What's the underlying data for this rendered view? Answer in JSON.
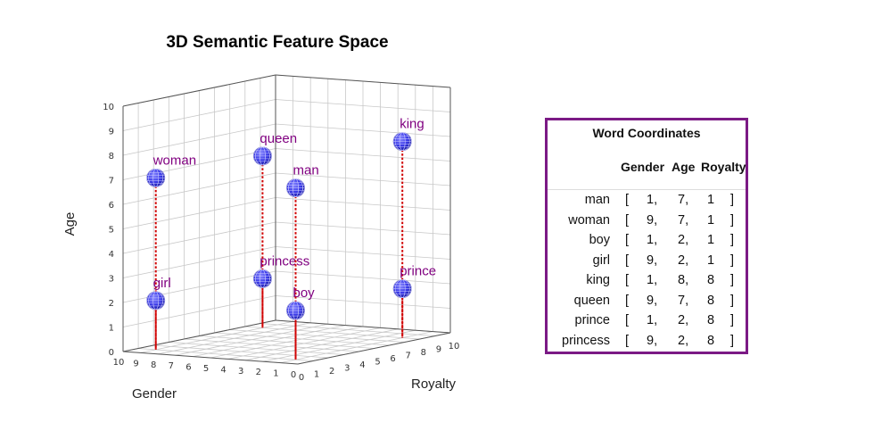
{
  "chart_data": {
    "type": "scatter3d",
    "title": "3D Semantic Feature Space",
    "xlabel": "Gender",
    "ylabel": "Royalty",
    "zlabel": "Age",
    "xlim": [
      0,
      10
    ],
    "ylim": [
      0,
      10
    ],
    "zlim": [
      0,
      10
    ],
    "ticks": [
      "0",
      "1",
      "2",
      "3",
      "4",
      "5",
      "6",
      "7",
      "8",
      "9",
      "10"
    ],
    "grid": true,
    "marker_color": "#3a3ae8",
    "label_color": "#800080",
    "stem_color": "#d00000",
    "points": [
      {
        "word": "man",
        "gender": 1,
        "age": 7,
        "royalty": 1
      },
      {
        "word": "woman",
        "gender": 9,
        "age": 7,
        "royalty": 1
      },
      {
        "word": "boy",
        "gender": 1,
        "age": 2,
        "royalty": 1
      },
      {
        "word": "girl",
        "gender": 9,
        "age": 2,
        "royalty": 1
      },
      {
        "word": "king",
        "gender": 1,
        "age": 8,
        "royalty": 8
      },
      {
        "word": "queen",
        "gender": 9,
        "age": 7,
        "royalty": 8
      },
      {
        "word": "prince",
        "gender": 1,
        "age": 2,
        "royalty": 8
      },
      {
        "word": "princess",
        "gender": 9,
        "age": 2,
        "royalty": 8
      }
    ]
  },
  "table": {
    "title": "Word Coordinates",
    "headers": {
      "gender": "Gender",
      "age": "Age",
      "royalty": "Royalty"
    },
    "open_bracket": "[",
    "close_bracket": "]",
    "border_color": "#7b1a85",
    "rows": [
      {
        "word": "man",
        "gender": "1,",
        "age": "7,",
        "royalty": "1"
      },
      {
        "word": "woman",
        "gender": "9,",
        "age": "7,",
        "royalty": "1"
      },
      {
        "word": "boy",
        "gender": "1,",
        "age": "2,",
        "royalty": "1"
      },
      {
        "word": "girl",
        "gender": "9,",
        "age": "2,",
        "royalty": "1"
      },
      {
        "word": "king",
        "gender": "1,",
        "age": "8,",
        "royalty": "8"
      },
      {
        "word": "queen",
        "gender": "9,",
        "age": "7,",
        "royalty": "8"
      },
      {
        "word": "prince",
        "gender": "1,",
        "age": "2,",
        "royalty": "8"
      },
      {
        "word": "princess",
        "gender": "9,",
        "age": "2,",
        "royalty": "8"
      }
    ]
  }
}
